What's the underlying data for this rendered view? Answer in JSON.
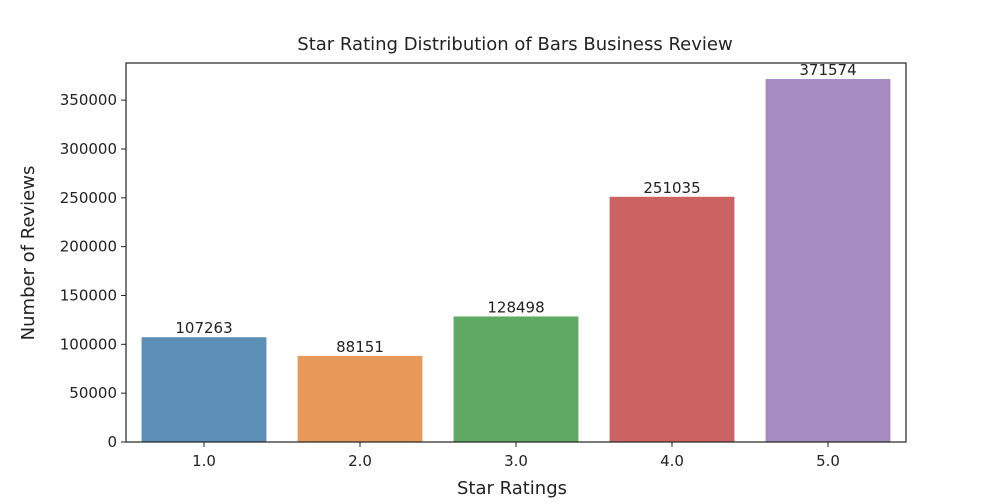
{
  "chart_data": {
    "type": "bar",
    "title": "Star Rating Distribution of Bars Business Review",
    "xlabel": "Star Ratings",
    "ylabel": "Number of Reviews",
    "categories": [
      "1.0",
      "2.0",
      "3.0",
      "4.0",
      "5.0"
    ],
    "values": [
      107263,
      88151,
      128498,
      251035,
      371574
    ],
    "data_labels": [
      "107263",
      "88151",
      "128498",
      "251035",
      "371574"
    ],
    "colors": [
      "#5b8fb5",
      "#e8995a",
      "#60a963",
      "#cc6363",
      "#a78cc2"
    ],
    "ylim": [
      0,
      388000
    ],
    "yticks": [
      0,
      50000,
      100000,
      150000,
      200000,
      250000,
      300000,
      350000
    ],
    "ytick_labels": [
      "0",
      "50000",
      "100000",
      "150000",
      "200000",
      "250000",
      "300000",
      "350000"
    ],
    "grid": false,
    "legend": "none"
  }
}
